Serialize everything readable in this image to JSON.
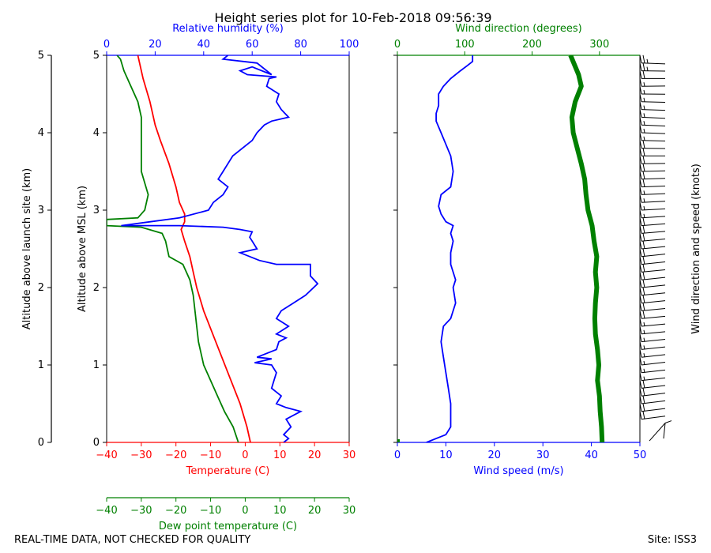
{
  "title": "Height series plot for 10-Feb-2018 09:56:39",
  "footer_left": "REAL-TIME DATA, NOT CHECKED FOR QUALITY",
  "footer_right": "Site: ISS3",
  "colors": {
    "temperature": "#ff0000",
    "dewpoint": "#008000",
    "rh": "#0000ff",
    "wind_speed": "#0000ff",
    "wind_dir": "#008000",
    "axis": "#000000"
  },
  "chart_data": [
    {
      "type": "line",
      "name": "thermodynamic-panel",
      "xlabel": "Temperature (C)",
      "xlabel_dewpoint": "Dew point temperature (C)",
      "xlabel_top": "Relative humidity (%)",
      "ylabel_msl": "Altitude above MSL (km)",
      "ylabel_launch": "Altitude above launch site (km)",
      "xlim": [
        -40,
        30
      ],
      "xticks": [
        -40,
        -30,
        -20,
        -10,
        0,
        10,
        20,
        30
      ],
      "xlim_top": [
        0,
        100
      ],
      "xticks_top": [
        0,
        20,
        40,
        60,
        80,
        100
      ],
      "ylim": [
        0,
        5
      ],
      "yticks": [
        0,
        1,
        2,
        3,
        4,
        5
      ],
      "series": [
        {
          "name": "Temperature",
          "color": "#ff0000",
          "axis": "bottom",
          "points": [
            [
              1.5,
              0
            ],
            [
              0.5,
              0.2
            ],
            [
              -1.5,
              0.5
            ],
            [
              -5,
              0.9
            ],
            [
              -8.5,
              1.3
            ],
            [
              -12,
              1.7
            ],
            [
              -14,
              2.0
            ],
            [
              -15,
              2.2
            ],
            [
              -16,
              2.4
            ],
            [
              -17.5,
              2.6
            ],
            [
              -18.5,
              2.75
            ],
            [
              -17.5,
              2.85
            ],
            [
              -17.5,
              2.95
            ],
            [
              -19,
              3.1
            ],
            [
              -20,
              3.3
            ],
            [
              -22,
              3.6
            ],
            [
              -24.5,
              3.9
            ],
            [
              -26,
              4.1
            ],
            [
              -27.5,
              4.4
            ],
            [
              -29.5,
              4.7
            ],
            [
              -31,
              5.0
            ]
          ]
        },
        {
          "name": "Dew point",
          "color": "#008000",
          "axis": "bottom",
          "points": [
            [
              -2,
              0
            ],
            [
              -3.5,
              0.2
            ],
            [
              -6,
              0.4
            ],
            [
              -8,
              0.6
            ],
            [
              -10.5,
              0.85
            ],
            [
              -12,
              1.0
            ],
            [
              -13.5,
              1.3
            ],
            [
              -14,
              1.5
            ],
            [
              -14.5,
              1.7
            ],
            [
              -15,
              1.9
            ],
            [
              -16,
              2.1
            ],
            [
              -18,
              2.3
            ],
            [
              -22,
              2.4
            ],
            [
              -23,
              2.6
            ],
            [
              -24,
              2.7
            ],
            [
              -30,
              2.78
            ],
            [
              -40,
              2.8
            ],
            [
              -40,
              2.88
            ],
            [
              -31,
              2.9
            ],
            [
              -29,
              3.0
            ],
            [
              -28,
              3.2
            ],
            [
              -30,
              3.5
            ],
            [
              -30,
              3.8
            ],
            [
              -30,
              4.0
            ],
            [
              -30,
              4.2
            ],
            [
              -31,
              4.4
            ],
            [
              -33,
              4.6
            ],
            [
              -35,
              4.8
            ],
            [
              -36,
              4.95
            ],
            [
              -37,
              5.0
            ]
          ]
        },
        {
          "name": "Relative humidity",
          "color": "#0000ff",
          "axis": "top",
          "points": [
            [
              73,
              0
            ],
            [
              75,
              0.05
            ],
            [
              73,
              0.1
            ],
            [
              76,
              0.2
            ],
            [
              74,
              0.3
            ],
            [
              80,
              0.4
            ],
            [
              74,
              0.45
            ],
            [
              70,
              0.5
            ],
            [
              72,
              0.6
            ],
            [
              68,
              0.7
            ],
            [
              69,
              0.8
            ],
            [
              70,
              0.9
            ],
            [
              68,
              1.0
            ],
            [
              61,
              1.03
            ],
            [
              68,
              1.08
            ],
            [
              62,
              1.1
            ],
            [
              70,
              1.2
            ],
            [
              71,
              1.3
            ],
            [
              74,
              1.35
            ],
            [
              70,
              1.4
            ],
            [
              75,
              1.5
            ],
            [
              70,
              1.6
            ],
            [
              72,
              1.7
            ],
            [
              77,
              1.8
            ],
            [
              82,
              1.9
            ],
            [
              87,
              2.05
            ],
            [
              84,
              2.15
            ],
            [
              84,
              2.3
            ],
            [
              70,
              2.3
            ],
            [
              63,
              2.35
            ],
            [
              55,
              2.45
            ],
            [
              62,
              2.5
            ],
            [
              60,
              2.6
            ],
            [
              59,
              2.65
            ],
            [
              60,
              2.72
            ],
            [
              55,
              2.75
            ],
            [
              48,
              2.78
            ],
            [
              30,
              2.8
            ],
            [
              6,
              2.8
            ],
            [
              18,
              2.85
            ],
            [
              30,
              2.9
            ],
            [
              42,
              3.0
            ],
            [
              44,
              3.1
            ],
            [
              48,
              3.2
            ],
            [
              50,
              3.3
            ],
            [
              46,
              3.4
            ],
            [
              48,
              3.5
            ],
            [
              50,
              3.6
            ],
            [
              52,
              3.7
            ],
            [
              56,
              3.8
            ],
            [
              60,
              3.9
            ],
            [
              62,
              4.0
            ],
            [
              65,
              4.1
            ],
            [
              68,
              4.15
            ],
            [
              75,
              4.2
            ],
            [
              72,
              4.3
            ],
            [
              70,
              4.4
            ],
            [
              71,
              4.5
            ],
            [
              66,
              4.6
            ],
            [
              67,
              4.7
            ],
            [
              70,
              4.72
            ],
            [
              58,
              4.75
            ],
            [
              55,
              4.8
            ],
            [
              60,
              4.85
            ],
            [
              68,
              4.75
            ],
            [
              62,
              4.9
            ],
            [
              48,
              4.95
            ],
            [
              50,
              5.0
            ]
          ]
        }
      ]
    },
    {
      "type": "line",
      "name": "wind-panel",
      "xlabel": "Wind speed (m/s)",
      "xlabel_top": "Wind direction (degrees)",
      "ylabel_right": "Wind direction and speed (knots)",
      "xlim": [
        0,
        50
      ],
      "xticks": [
        0,
        10,
        20,
        30,
        40,
        50
      ],
      "xlim_top": [
        0,
        360
      ],
      "xticks_top": [
        0,
        100,
        200,
        300
      ],
      "ylim": [
        0,
        5
      ],
      "series": [
        {
          "name": "Wind speed",
          "color": "#0000ff",
          "axis": "bottom",
          "points": [
            [
              6,
              0
            ],
            [
              10,
              0.1
            ],
            [
              11,
              0.2
            ],
            [
              11,
              0.5
            ],
            [
              10.5,
              0.7
            ],
            [
              10,
              0.9
            ],
            [
              9.5,
              1.1
            ],
            [
              9,
              1.3
            ],
            [
              9.5,
              1.5
            ],
            [
              11,
              1.6
            ],
            [
              12,
              1.8
            ],
            [
              11.5,
              2.0
            ],
            [
              12,
              2.1
            ],
            [
              11,
              2.3
            ],
            [
              11,
              2.45
            ],
            [
              11.5,
              2.6
            ],
            [
              11,
              2.7
            ],
            [
              11.5,
              2.8
            ],
            [
              10,
              2.85
            ],
            [
              9,
              2.95
            ],
            [
              8.5,
              3.05
            ],
            [
              9,
              3.2
            ],
            [
              11,
              3.3
            ],
            [
              11.5,
              3.5
            ],
            [
              11,
              3.7
            ],
            [
              10,
              3.85
            ],
            [
              9,
              4.0
            ],
            [
              8,
              4.15
            ],
            [
              8,
              4.25
            ],
            [
              8.5,
              4.35
            ],
            [
              8.5,
              4.5
            ],
            [
              9.5,
              4.6
            ],
            [
              11,
              4.7
            ],
            [
              13,
              4.8
            ],
            [
              14.5,
              4.87
            ],
            [
              15.5,
              4.92
            ],
            [
              15.5,
              5.0
            ]
          ]
        },
        {
          "name": "Wind direction",
          "color": "#008000",
          "axis": "top",
          "points": [
            [
              304,
              0
            ],
            [
              303,
              0.2
            ],
            [
              301,
              0.4
            ],
            [
              300,
              0.6
            ],
            [
              297,
              0.8
            ],
            [
              299,
              1.0
            ],
            [
              297,
              1.2
            ],
            [
              294,
              1.4
            ],
            [
              293,
              1.6
            ],
            [
              294,
              1.8
            ],
            [
              296,
              2.0
            ],
            [
              294,
              2.2
            ],
            [
              296,
              2.4
            ],
            [
              292,
              2.6
            ],
            [
              289,
              2.8
            ],
            [
              283,
              3.0
            ],
            [
              280,
              3.2
            ],
            [
              278,
              3.4
            ],
            [
              273,
              3.6
            ],
            [
              267,
              3.8
            ],
            [
              261,
              4.0
            ],
            [
              259,
              4.2
            ],
            [
              264,
              4.4
            ],
            [
              273,
              4.6
            ],
            [
              269,
              4.75
            ],
            [
              257,
              5.0
            ]
          ]
        }
      ]
    }
  ]
}
